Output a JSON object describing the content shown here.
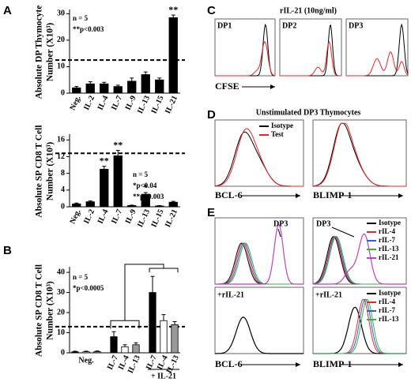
{
  "chart_data": [
    {
      "type": "bar",
      "panel": "A",
      "ylabel": [
        "Absolute DP Thymocyte",
        "Number (X10³)"
      ],
      "categories": [
        "Neg.",
        "IL-2",
        "IL-4",
        "IL-7",
        "IL-9",
        "IL-13",
        "IL-15",
        "IL-21"
      ],
      "values": [
        2,
        3.5,
        3.5,
        2.5,
        4.5,
        7,
        5,
        28.5
      ],
      "errors": [
        0.5,
        0.8,
        0.6,
        0.5,
        1.2,
        1,
        0.7,
        1
      ],
      "bar_labels": [
        null,
        null,
        null,
        null,
        null,
        null,
        null,
        "**"
      ],
      "color": "#000000",
      "reference_line": 12.5,
      "ylim": [
        0,
        31
      ],
      "yticks": [
        0,
        10,
        20,
        30
      ],
      "notes": [
        "n = 5",
        "**p<0.003"
      ]
    },
    {
      "type": "bar",
      "ylabel": [
        "Absolute SP CD8 T Cell",
        "Number (X10³)"
      ],
      "categories": [
        "Neg.",
        "IL-2",
        "IL-4",
        "IL-7",
        "IL-9",
        "IL-13",
        "IL-15",
        "IL-21"
      ],
      "values": [
        0.7,
        1.2,
        9,
        12.2,
        0.3,
        3,
        0.2,
        1.1
      ],
      "errors": [
        0.2,
        0.2,
        0.7,
        1.3,
        0.1,
        0.4,
        0.1,
        0.2
      ],
      "bar_labels": [
        null,
        null,
        "**",
        "**",
        null,
        "*",
        null,
        null
      ],
      "color": "#000000",
      "reference_line": 12.8,
      "ylim": [
        0,
        17
      ],
      "yticks": [
        0,
        4,
        8,
        12,
        16
      ],
      "notes": [
        "n = 5",
        "*p<0.04",
        "**p<0.003"
      ]
    },
    {
      "type": "bar",
      "panel": "B",
      "ylabel": [
        "Absolute SP CD8 T Cell",
        "Number (X10³)"
      ],
      "categories": [
        "Neg.",
        null,
        null,
        "IL-7",
        "IL-4",
        "IL-13",
        "IL-7",
        "IL-4",
        "IL-13"
      ],
      "values": [
        0.5,
        0.5,
        0.6,
        8,
        3,
        4,
        30,
        16,
        14
      ],
      "errors": [
        0.3,
        0.3,
        0.3,
        2.5,
        1,
        1,
        8,
        3,
        1.5
      ],
      "colors": [
        "#000000",
        "#ffffff",
        "#999999",
        "#000000",
        "#ffffff",
        "#999999",
        "#000000",
        "#ffffff",
        "#999999"
      ],
      "reference_line": 13,
      "ylim": [
        0,
        42
      ],
      "yticks": [
        0,
        10,
        20,
        30,
        40
      ],
      "notes": [
        "n = 5",
        "*p<0.0005"
      ],
      "group_label": "+ IL-21"
    }
  ],
  "panels": {
    "C": {
      "letter": "C",
      "title": "rIL-21 (10ng/ml)",
      "subsets": [
        "DP1",
        "DP2",
        "DP3"
      ],
      "xlabel": "CFSE"
    },
    "D": {
      "letter": "D",
      "title": "Unstimulated DP3 Thymocytes",
      "legend": [
        {
          "name": "Isotype",
          "color": "#000000"
        },
        {
          "name": "Test",
          "color": "#e8262a"
        }
      ],
      "xlabels": [
        "BCL-6",
        "BLIMP-1"
      ]
    },
    "E": {
      "letter": "E",
      "legend": [
        {
          "name": "Isotype",
          "color": "#000000"
        },
        {
          "name": "rIL-4",
          "color": "#e8262a"
        },
        {
          "name": "rIL-7",
          "color": "#2b5fd9"
        },
        {
          "name": "rIL-13",
          "color": "#3cb043"
        },
        {
          "name": "rIL-21",
          "color": "#c040c0"
        }
      ],
      "subset": "DP3",
      "stim": "+rIL-21",
      "xlabels": [
        "BCL-6",
        "BLIMP-1"
      ]
    }
  }
}
